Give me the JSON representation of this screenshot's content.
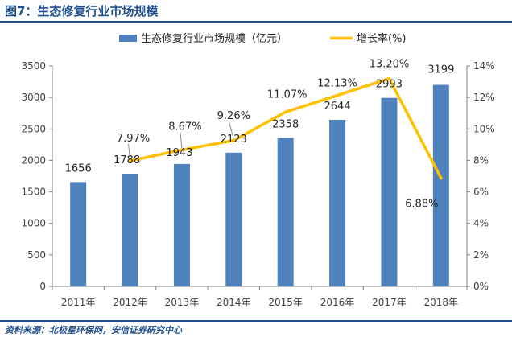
{
  "figure": {
    "title": "图7：生态修复行业市场规模",
    "source": "资料来源：北极星环保网，安信证券研究中心"
  },
  "colors": {
    "bar": "#4f81bd",
    "line": "#ffc000",
    "title": "#1f4e8c",
    "axis": "#7f7f7f",
    "text": "#404040"
  },
  "chart_data": {
    "type": "bar",
    "categories": [
      "2011年",
      "2012年",
      "2013年",
      "2014年",
      "2015年",
      "2016年",
      "2017年",
      "2018年"
    ],
    "series": [
      {
        "name": "生态修复行业市场规模（亿元）",
        "type": "bar",
        "axis": "left",
        "values": [
          1656,
          1788,
          1943,
          2123,
          2358,
          2644,
          2993,
          3199
        ],
        "labels": [
          "1656",
          "1788",
          "1943",
          "2123",
          "2358",
          "2644",
          "2993",
          "3199"
        ]
      },
      {
        "name": "增长率(%)",
        "type": "line",
        "axis": "right",
        "values": [
          null,
          7.97,
          8.67,
          9.26,
          11.07,
          12.13,
          13.2,
          6.88
        ],
        "labels": [
          "",
          "7.97%",
          "8.67%",
          "9.26%",
          "11.07%",
          "12.13%",
          "13.20%",
          "6.88%"
        ]
      }
    ],
    "y_left": {
      "range": [
        0,
        3500
      ],
      "ticks": [
        "0",
        "500",
        "1000",
        "1500",
        "2000",
        "2500",
        "3000",
        "3500"
      ]
    },
    "y_right": {
      "range": [
        0,
        14
      ],
      "ticks": [
        "0%",
        "2%",
        "4%",
        "6%",
        "8%",
        "10%",
        "12%",
        "14%"
      ]
    },
    "legend_position": "top",
    "grid": false
  }
}
